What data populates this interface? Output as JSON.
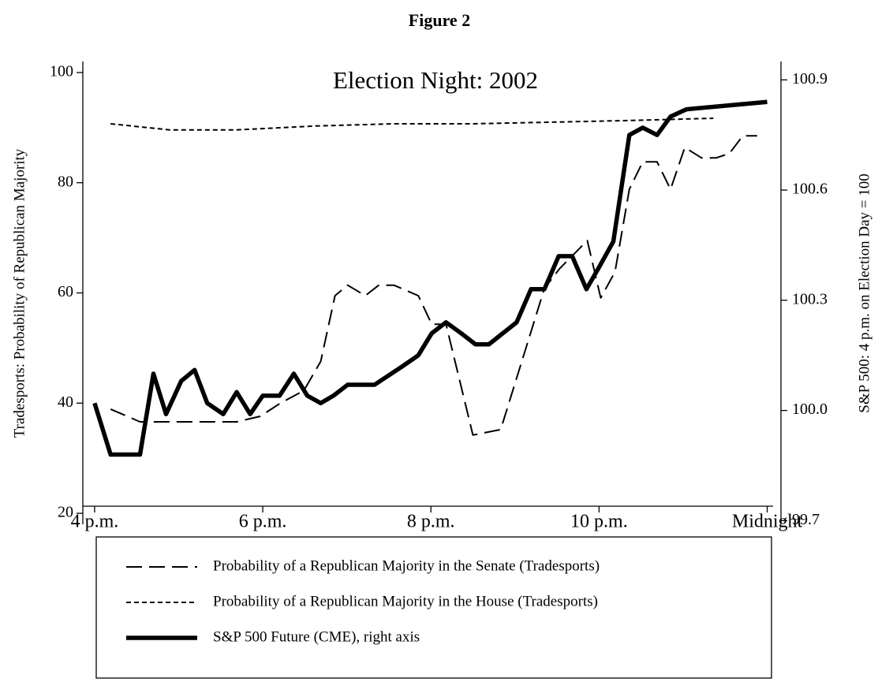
{
  "chart_data": {
    "type": "line",
    "figure_label": "Figure 2",
    "title": "Election Night: 2002",
    "ylabel": "Tradesports: Probability of Republican Majority",
    "y2label": "S&P 500: 4 p.m. on Election Day = 100",
    "xlim": [
      15.86,
      24.07
    ],
    "xticks": [
      {
        "value": 16,
        "label": "4 p.m."
      },
      {
        "value": 18,
        "label": "6 p.m."
      },
      {
        "value": 20,
        "label": "8 p.m."
      },
      {
        "value": 22,
        "label": "10 p.m."
      },
      {
        "value": 24,
        "label": "Midnight"
      }
    ],
    "ylim": [
      18,
      102
    ],
    "yticks": [
      20,
      40,
      60,
      80,
      100
    ],
    "y2lim": [
      99.69,
      100.95
    ],
    "y2ticks": [
      99.7,
      100.0,
      100.3,
      100.6,
      100.9
    ],
    "series": [
      {
        "name": "Probability of a Republican Majority in the Senate (Tradesports)",
        "color": "#000000",
        "dash": "long",
        "x": [
          16.19,
          16.54,
          17.69,
          17.97,
          18.2,
          18.49,
          18.69,
          18.86,
          19.01,
          19.22,
          19.38,
          19.56,
          19.85,
          20.01,
          20.18,
          20.5,
          20.83,
          21.35,
          21.53,
          21.86,
          22.02,
          22.19,
          22.36,
          22.52,
          22.69,
          22.85,
          23.02,
          23.22,
          23.39,
          23.55,
          23.71,
          23.88
        ],
        "values": [
          38.9,
          36.6,
          36.6,
          37.6,
          39.9,
          42.3,
          47.6,
          59.5,
          61.4,
          59.5,
          61.4,
          61.4,
          59.5,
          54.3,
          54.3,
          34.2,
          35.2,
          60.8,
          64.4,
          69.5,
          59.1,
          63.8,
          78.8,
          83.8,
          83.8,
          78.8,
          86.4,
          84.5,
          84.5,
          85.3,
          88.5,
          88.5
        ]
      },
      {
        "name": "Probability of a Republican Majority in the House (Tradesports)",
        "color": "#000000",
        "dash": "short",
        "x": [
          16.19,
          16.89,
          17.69,
          18.63,
          19.56,
          20.5,
          21.44,
          22.38,
          23.36
        ],
        "values": [
          90.7,
          89.6,
          89.6,
          90.3,
          90.7,
          90.7,
          91.0,
          91.3,
          91.7
        ]
      },
      {
        "name": "S&P 500 Future (CME), right axis",
        "color": "#000000",
        "dash": "solid",
        "axis": "y2",
        "x": [
          16.0,
          16.19,
          16.54,
          16.7,
          16.85,
          17.03,
          17.19,
          17.34,
          17.53,
          17.69,
          17.85,
          18.0,
          18.2,
          18.37,
          18.53,
          18.69,
          18.84,
          19.01,
          19.33,
          19.66,
          19.85,
          20.01,
          20.18,
          20.36,
          20.53,
          20.69,
          21.02,
          21.19,
          21.35,
          21.52,
          21.68,
          21.85,
          22.0,
          22.17,
          22.36,
          22.52,
          22.69,
          22.85,
          23.04,
          24.0
        ],
        "values": [
          100.02,
          99.88,
          99.88,
          100.1,
          99.99,
          100.08,
          100.11,
          100.02,
          99.99,
          100.05,
          99.99,
          100.04,
          100.04,
          100.1,
          100.04,
          100.02,
          100.04,
          100.07,
          100.07,
          100.12,
          100.15,
          100.21,
          100.24,
          100.21,
          100.18,
          100.18,
          100.24,
          100.33,
          100.33,
          100.42,
          100.42,
          100.33,
          100.39,
          100.46,
          100.75,
          100.77,
          100.75,
          100.8,
          100.82,
          100.84
        ]
      }
    ]
  }
}
